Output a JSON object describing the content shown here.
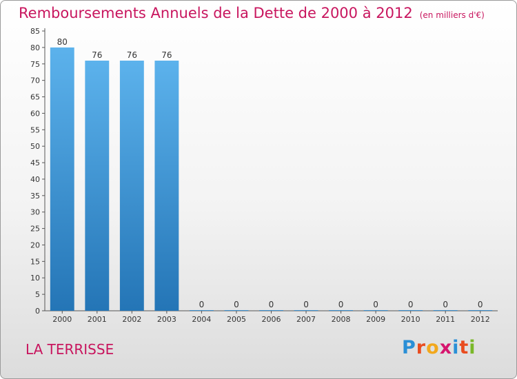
{
  "chart_data": {
    "type": "bar",
    "title": "Remboursements Annuels de la Dette de 2000 à 2012",
    "subtitle": "(en milliers d'€)",
    "xlabel": "",
    "ylabel": "",
    "categories": [
      "2000",
      "2001",
      "2002",
      "2003",
      "2004",
      "2005",
      "2006",
      "2007",
      "2008",
      "2009",
      "2010",
      "2011",
      "2012"
    ],
    "values": [
      80,
      76,
      76,
      76,
      0,
      0,
      0,
      0,
      0,
      0,
      0,
      0,
      0
    ],
    "ylim": [
      0,
      85
    ],
    "yticks": [
      0,
      5,
      10,
      15,
      20,
      25,
      30,
      35,
      40,
      45,
      50,
      55,
      60,
      65,
      70,
      75,
      80,
      85
    ],
    "grid": false,
    "legend": "none",
    "bar_color_top": "#5cb2ec",
    "bar_color_bottom": "#2475b6"
  },
  "commune": "LA TERRISSE",
  "logo": {
    "letters": [
      "P",
      "r",
      "o",
      "x",
      "i",
      "t",
      "i"
    ],
    "colors": [
      "#2a8fd6",
      "#e94c1f",
      "#f2a81d",
      "#d6156e",
      "#2a8fd6",
      "#e94c1f",
      "#7ab829"
    ]
  }
}
